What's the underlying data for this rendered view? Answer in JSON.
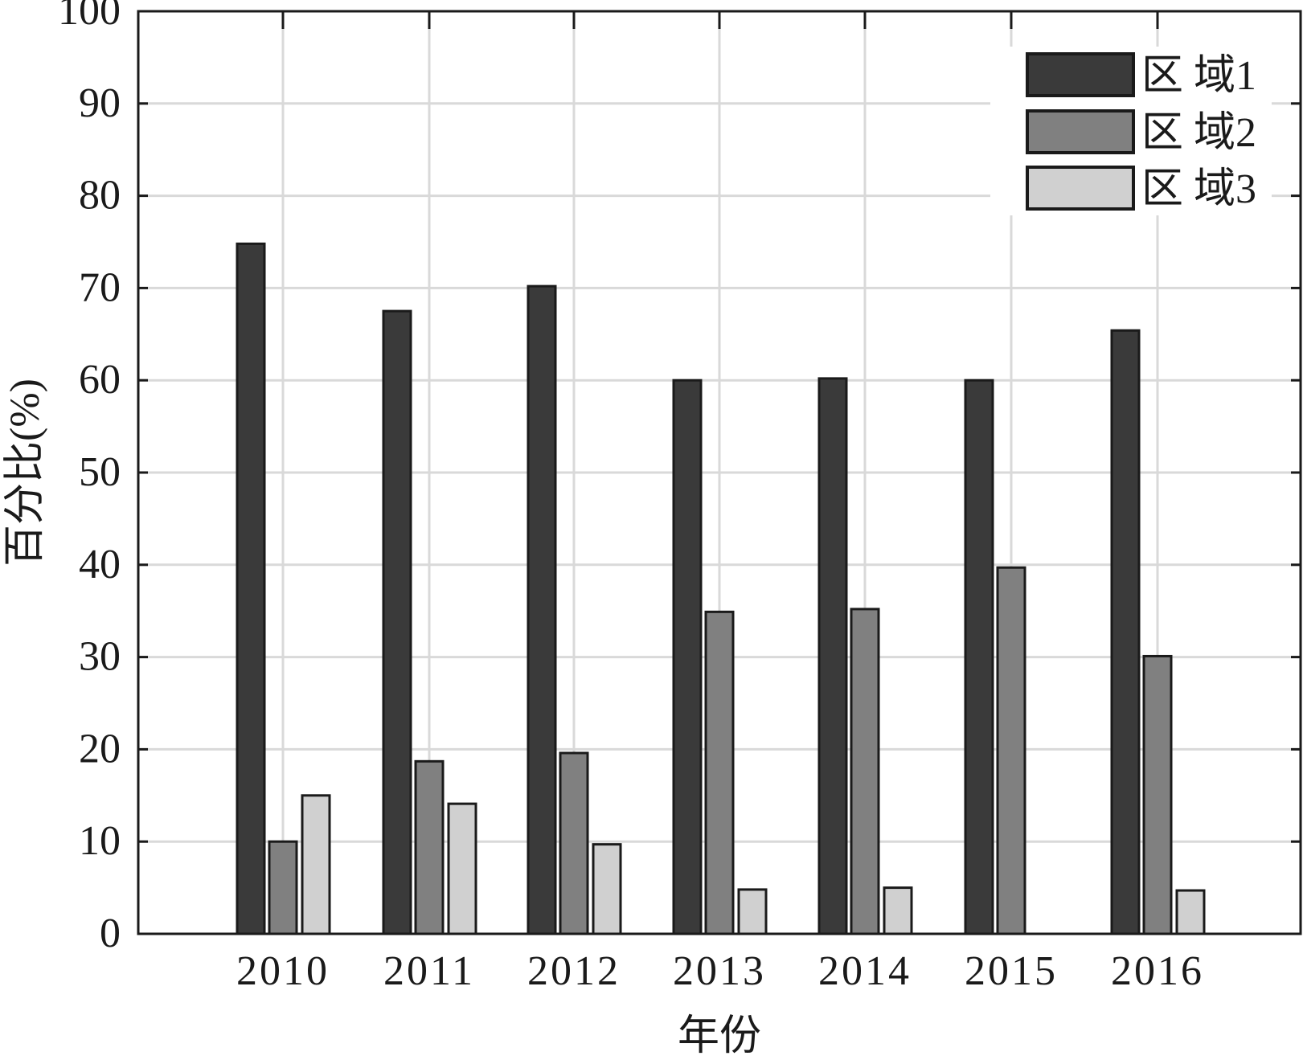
{
  "chart_data": {
    "type": "bar",
    "title": "",
    "xlabel": "年份",
    "ylabel": "百分比(%)",
    "ylim": [
      0,
      100
    ],
    "yticks": [
      "0",
      "10",
      "20",
      "30",
      "40",
      "50",
      "60",
      "70",
      "80",
      "90",
      "100"
    ],
    "categories": [
      "2010",
      "2011",
      "2012",
      "2013",
      "2014",
      "2015",
      "2016"
    ],
    "series": [
      {
        "name": "区 域1",
        "color": "#3a3a3a",
        "values": [
          74.8,
          67.5,
          70.2,
          60.0,
          60.2,
          60.0,
          65.4
        ]
      },
      {
        "name": "区 域2",
        "color": "#808080",
        "values": [
          10.0,
          18.7,
          19.6,
          34.9,
          35.2,
          39.7,
          30.1
        ]
      },
      {
        "name": "区 域3",
        "color": "#d0d0d0",
        "values": [
          15.0,
          14.1,
          9.7,
          4.8,
          5.0,
          0.0,
          4.7
        ]
      }
    ],
    "grid": true,
    "legend_position": "top-right"
  }
}
